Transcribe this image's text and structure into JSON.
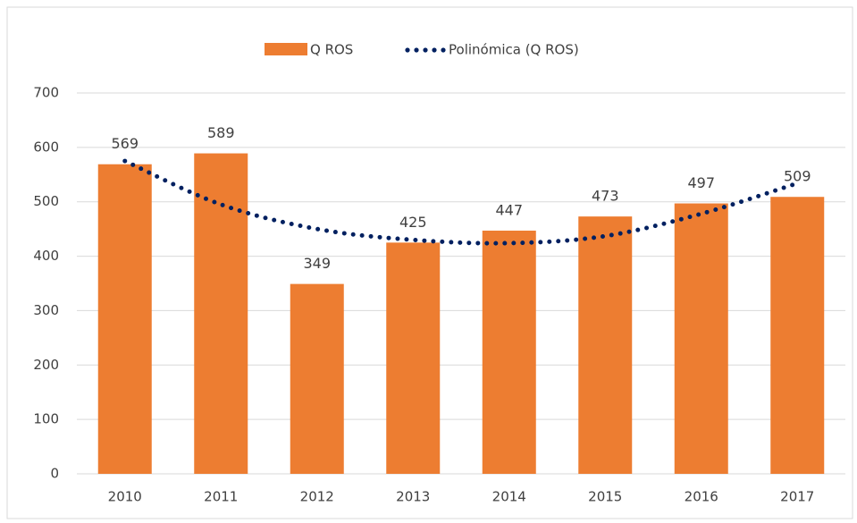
{
  "chart_data": {
    "type": "bar",
    "categories": [
      "2010",
      "2011",
      "2012",
      "2013",
      "2014",
      "2015",
      "2016",
      "2017"
    ],
    "series": [
      {
        "name": "Q ROS",
        "color": "#ed7d31",
        "values": [
          569,
          589,
          349,
          425,
          447,
          473,
          497,
          509
        ]
      },
      {
        "name": "Polinómica (Q ROS)",
        "type": "line",
        "color": "#002060",
        "values": [
          575,
          495,
          450,
          430,
          424,
          437,
          478,
          534
        ]
      }
    ],
    "ylim": [
      0,
      700
    ],
    "yticks": [
      0,
      100,
      200,
      300,
      400,
      500,
      600,
      700
    ],
    "grid": true,
    "legend": "top"
  }
}
